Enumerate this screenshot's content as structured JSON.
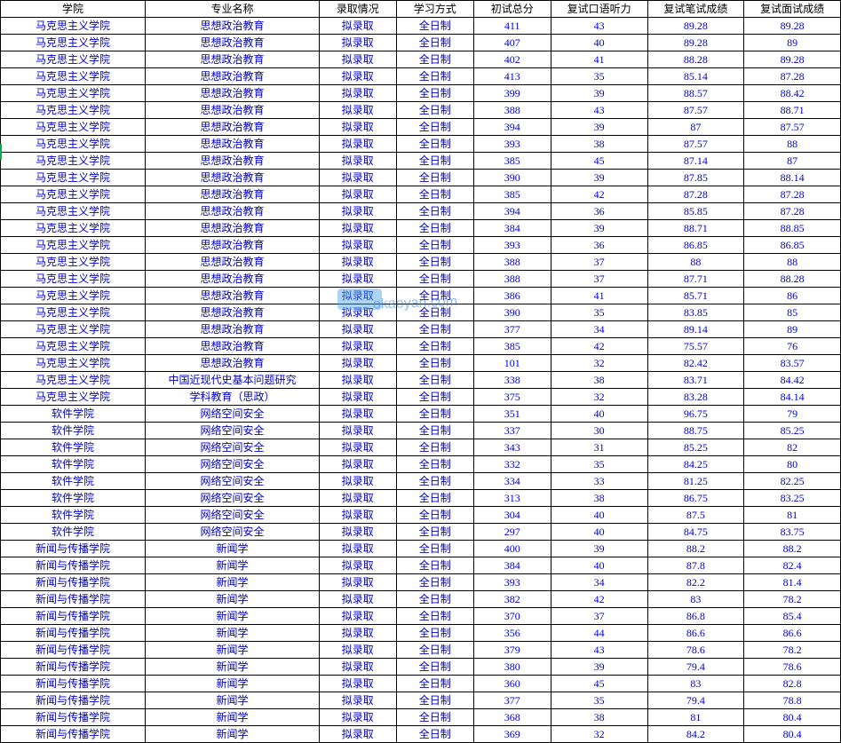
{
  "table": {
    "columns": [
      "学院",
      "专业名称",
      "录取情况",
      "学习方式",
      "初试总分",
      "复试口语听力",
      "复试笔试成绩",
      "复试面试成绩"
    ],
    "col_classes": [
      "col-college",
      "col-major",
      "col-status",
      "col-mode",
      "col-score1",
      "col-score2",
      "col-score3",
      "col-score4"
    ],
    "rows": [
      [
        "马克思主义学院",
        "思想政治教育",
        "拟录取",
        "全日制",
        "411",
        "43",
        "89.28",
        "89.28"
      ],
      [
        "马克思主义学院",
        "思想政治教育",
        "拟录取",
        "全日制",
        "407",
        "40",
        "89.28",
        "89"
      ],
      [
        "马克思主义学院",
        "思想政治教育",
        "拟录取",
        "全日制",
        "402",
        "41",
        "88.28",
        "89.28"
      ],
      [
        "马克思主义学院",
        "思想政治教育",
        "拟录取",
        "全日制",
        "413",
        "35",
        "85.14",
        "87.28"
      ],
      [
        "马克思主义学院",
        "思想政治教育",
        "拟录取",
        "全日制",
        "399",
        "39",
        "88.57",
        "88.42"
      ],
      [
        "马克思主义学院",
        "思想政治教育",
        "拟录取",
        "全日制",
        "388",
        "43",
        "87.57",
        "88.71"
      ],
      [
        "马克思主义学院",
        "思想政治教育",
        "拟录取",
        "全日制",
        "394",
        "39",
        "87",
        "87.57"
      ],
      [
        "马克思主义学院",
        "思想政治教育",
        "拟录取",
        "全日制",
        "393",
        "38",
        "87.57",
        "88"
      ],
      [
        "马克思主义学院",
        "思想政治教育",
        "拟录取",
        "全日制",
        "385",
        "45",
        "87.14",
        "87"
      ],
      [
        "马克思主义学院",
        "思想政治教育",
        "拟录取",
        "全日制",
        "390",
        "39",
        "87.85",
        "88.14"
      ],
      [
        "马克思主义学院",
        "思想政治教育",
        "拟录取",
        "全日制",
        "385",
        "42",
        "87.28",
        "87.28"
      ],
      [
        "马克思主义学院",
        "思想政治教育",
        "拟录取",
        "全日制",
        "394",
        "36",
        "85.85",
        "87.28"
      ],
      [
        "马克思主义学院",
        "思想政治教育",
        "拟录取",
        "全日制",
        "384",
        "39",
        "88.71",
        "88.85"
      ],
      [
        "马克思主义学院",
        "思想政治教育",
        "拟录取",
        "全日制",
        "393",
        "36",
        "86.85",
        "86.85"
      ],
      [
        "马克思主义学院",
        "思想政治教育",
        "拟录取",
        "全日制",
        "388",
        "37",
        "88",
        "88"
      ],
      [
        "马克思主义学院",
        "思想政治教育",
        "拟录取",
        "全日制",
        "388",
        "37",
        "87.71",
        "88.28"
      ],
      [
        "马克思主义学院",
        "思想政治教育",
        "拟录取",
        "全日制",
        "386",
        "41",
        "85.71",
        "86"
      ],
      [
        "马克思主义学院",
        "思想政治教育",
        "拟录取",
        "全日制",
        "390",
        "35",
        "83.85",
        "85"
      ],
      [
        "马克思主义学院",
        "思想政治教育",
        "拟录取",
        "全日制",
        "377",
        "34",
        "89.14",
        "89"
      ],
      [
        "马克思主义学院",
        "思想政治教育",
        "拟录取",
        "全日制",
        "385",
        "42",
        "75.57",
        "76"
      ],
      [
        "马克思主义学院",
        "思想政治教育",
        "拟录取",
        "全日制",
        "101",
        "32",
        "82.42",
        "83.57"
      ],
      [
        "马克思主义学院",
        "中国近现代史基本问题研究",
        "拟录取",
        "全日制",
        "338",
        "38",
        "83.71",
        "84.42"
      ],
      [
        "马克思主义学院",
        "学科教育（思政）",
        "拟录取",
        "全日制",
        "375",
        "32",
        "83.28",
        "84.14"
      ],
      [
        "软件学院",
        "网络空间安全",
        "拟录取",
        "全日制",
        "351",
        "40",
        "96.75",
        "79"
      ],
      [
        "软件学院",
        "网络空间安全",
        "拟录取",
        "全日制",
        "337",
        "30",
        "88.75",
        "85.25"
      ],
      [
        "软件学院",
        "网络空间安全",
        "拟录取",
        "全日制",
        "343",
        "31",
        "85.25",
        "82"
      ],
      [
        "软件学院",
        "网络空间安全",
        "拟录取",
        "全日制",
        "332",
        "35",
        "84.25",
        "80"
      ],
      [
        "软件学院",
        "网络空间安全",
        "拟录取",
        "全日制",
        "334",
        "33",
        "81.25",
        "82.25"
      ],
      [
        "软件学院",
        "网络空间安全",
        "拟录取",
        "全日制",
        "313",
        "38",
        "86.75",
        "83.25"
      ],
      [
        "软件学院",
        "网络空间安全",
        "拟录取",
        "全日制",
        "304",
        "40",
        "87.5",
        "81"
      ],
      [
        "软件学院",
        "网络空间安全",
        "拟录取",
        "全日制",
        "297",
        "40",
        "84.75",
        "83.75"
      ],
      [
        "新闻与传播学院",
        "新闻学",
        "拟录取",
        "全日制",
        "400",
        "39",
        "88.2",
        "88.2"
      ],
      [
        "新闻与传播学院",
        "新闻学",
        "拟录取",
        "全日制",
        "384",
        "40",
        "87.8",
        "82.4"
      ],
      [
        "新闻与传播学院",
        "新闻学",
        "拟录取",
        "全日制",
        "393",
        "34",
        "82.2",
        "81.4"
      ],
      [
        "新闻与传播学院",
        "新闻学",
        "拟录取",
        "全日制",
        "382",
        "42",
        "83",
        "78.2"
      ],
      [
        "新闻与传播学院",
        "新闻学",
        "拟录取",
        "全日制",
        "370",
        "37",
        "86.8",
        "85.4"
      ],
      [
        "新闻与传播学院",
        "新闻学",
        "拟录取",
        "全日制",
        "356",
        "44",
        "86.6",
        "86.6"
      ],
      [
        "新闻与传播学院",
        "新闻学",
        "拟录取",
        "全日制",
        "379",
        "43",
        "78.6",
        "78.2"
      ],
      [
        "新闻与传播学院",
        "新闻学",
        "拟录取",
        "全日制",
        "380",
        "39",
        "79.4",
        "78.6"
      ],
      [
        "新闻与传播学院",
        "新闻学",
        "拟录取",
        "全日制",
        "360",
        "45",
        "83",
        "82.8"
      ],
      [
        "新闻与传播学院",
        "新闻学",
        "拟录取",
        "全日制",
        "377",
        "35",
        "79.4",
        "78.8"
      ],
      [
        "新闻与传播学院",
        "新闻学",
        "拟录取",
        "全日制",
        "368",
        "38",
        "81",
        "80.4"
      ],
      [
        "新闻与传播学院",
        "新闻学",
        "拟录取",
        "全日制",
        "369",
        "32",
        "84.2",
        "80.4"
      ]
    ],
    "header_color": "#000000",
    "cell_color": "#0000cc",
    "border_color": "#000000",
    "background_color": "#ffffff",
    "font_size": 12
  },
  "watermark": {
    "text": "okaoyan.com",
    "color": "#3088e8"
  }
}
